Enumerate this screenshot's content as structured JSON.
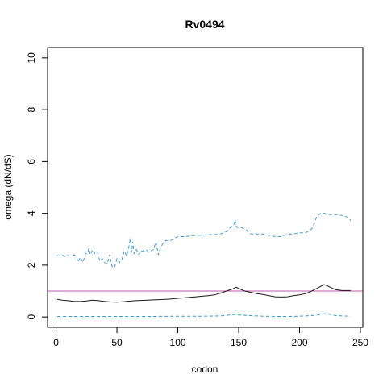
{
  "chart_data": {
    "type": "line",
    "title": "Rv0494",
    "xlabel": "codon",
    "ylabel": "omega (dN/dS)",
    "xlim": [
      -7,
      252
    ],
    "ylim": [
      -0.4,
      10.4
    ],
    "xticks": [
      0,
      50,
      100,
      150,
      200,
      250
    ],
    "yticks": [
      0,
      2,
      4,
      6,
      8,
      10
    ],
    "grid": false,
    "reference_line": {
      "y": 1.0,
      "color": "#c45ab3"
    },
    "series": [
      {
        "role": "upper",
        "color": "#3a9ad9",
        "style": "dashed",
        "x": [
          1,
          3,
          5,
          7,
          9,
          11,
          13,
          15,
          17,
          18,
          20,
          22,
          24,
          26,
          27,
          28,
          30,
          32,
          34,
          36,
          38,
          40,
          42,
          44,
          46,
          48,
          50,
          52,
          54,
          56,
          58,
          60,
          61,
          62,
          63,
          64,
          66,
          68,
          70,
          72,
          74,
          76,
          78,
          80,
          82,
          84,
          86,
          88,
          90,
          92,
          94,
          96,
          98,
          100,
          105,
          110,
          115,
          120,
          125,
          130,
          135,
          140,
          142,
          144,
          146,
          147,
          148,
          149,
          150,
          152,
          155,
          160,
          165,
          170,
          175,
          180,
          185,
          190,
          195,
          200,
          205,
          210,
          212,
          214,
          216,
          218,
          220,
          225,
          230,
          235,
          240,
          242
        ],
        "y": [
          2.38,
          2.35,
          2.4,
          2.33,
          2.38,
          2.35,
          2.36,
          2.4,
          2.3,
          2.12,
          2.3,
          2.1,
          2.42,
          2.5,
          2.65,
          2.4,
          2.6,
          2.45,
          2.5,
          2.15,
          2.25,
          2.1,
          2.05,
          2.4,
          1.95,
          1.9,
          2.25,
          2.1,
          2.2,
          2.55,
          2.35,
          2.75,
          3.05,
          2.5,
          2.9,
          2.45,
          2.6,
          2.4,
          2.55,
          2.55,
          2.6,
          2.5,
          2.55,
          2.6,
          2.9,
          2.4,
          2.7,
          2.85,
          2.95,
          2.95,
          2.95,
          3.0,
          3.05,
          3.1,
          3.1,
          3.12,
          3.15,
          3.15,
          3.18,
          3.18,
          3.2,
          3.3,
          3.4,
          3.5,
          3.55,
          3.75,
          3.5,
          3.45,
          3.45,
          3.45,
          3.4,
          3.2,
          3.2,
          3.2,
          3.15,
          3.1,
          3.1,
          3.2,
          3.2,
          3.25,
          3.25,
          3.4,
          3.6,
          3.85,
          3.95,
          4.02,
          4.0,
          3.95,
          3.95,
          3.92,
          3.85,
          3.72
        ]
      },
      {
        "role": "estimate",
        "color": "#1a1a1a",
        "style": "solid",
        "x": [
          1,
          5,
          10,
          15,
          20,
          25,
          30,
          35,
          40,
          45,
          50,
          55,
          60,
          65,
          70,
          75,
          80,
          85,
          90,
          95,
          100,
          105,
          110,
          115,
          120,
          125,
          130,
          135,
          140,
          145,
          148,
          150,
          155,
          160,
          165,
          170,
          175,
          180,
          185,
          190,
          195,
          200,
          205,
          210,
          215,
          220,
          223,
          225,
          230,
          235,
          240,
          242
        ],
        "y": [
          0.68,
          0.65,
          0.63,
          0.6,
          0.6,
          0.62,
          0.65,
          0.63,
          0.6,
          0.58,
          0.57,
          0.59,
          0.61,
          0.63,
          0.64,
          0.65,
          0.66,
          0.67,
          0.68,
          0.7,
          0.72,
          0.74,
          0.76,
          0.78,
          0.8,
          0.82,
          0.85,
          0.92,
          1.0,
          1.08,
          1.15,
          1.1,
          1.0,
          0.95,
          0.9,
          0.87,
          0.82,
          0.78,
          0.77,
          0.78,
          0.82,
          0.85,
          0.9,
          1.0,
          1.12,
          1.25,
          1.2,
          1.15,
          1.05,
          1.02,
          1.02,
          1.02
        ]
      },
      {
        "role": "lower",
        "color": "#3a9ad9",
        "style": "dashed",
        "x": [
          1,
          20,
          40,
          60,
          80,
          100,
          120,
          135,
          145,
          148,
          150,
          160,
          170,
          180,
          190,
          200,
          210,
          215,
          220,
          223,
          225,
          230,
          240,
          242
        ],
        "y": [
          0.02,
          0.02,
          0.02,
          0.02,
          0.02,
          0.03,
          0.03,
          0.04,
          0.09,
          0.09,
          0.08,
          0.05,
          0.03,
          0.02,
          0.02,
          0.03,
          0.05,
          0.08,
          0.12,
          0.12,
          0.1,
          0.05,
          0.03,
          0.03
        ]
      }
    ]
  }
}
